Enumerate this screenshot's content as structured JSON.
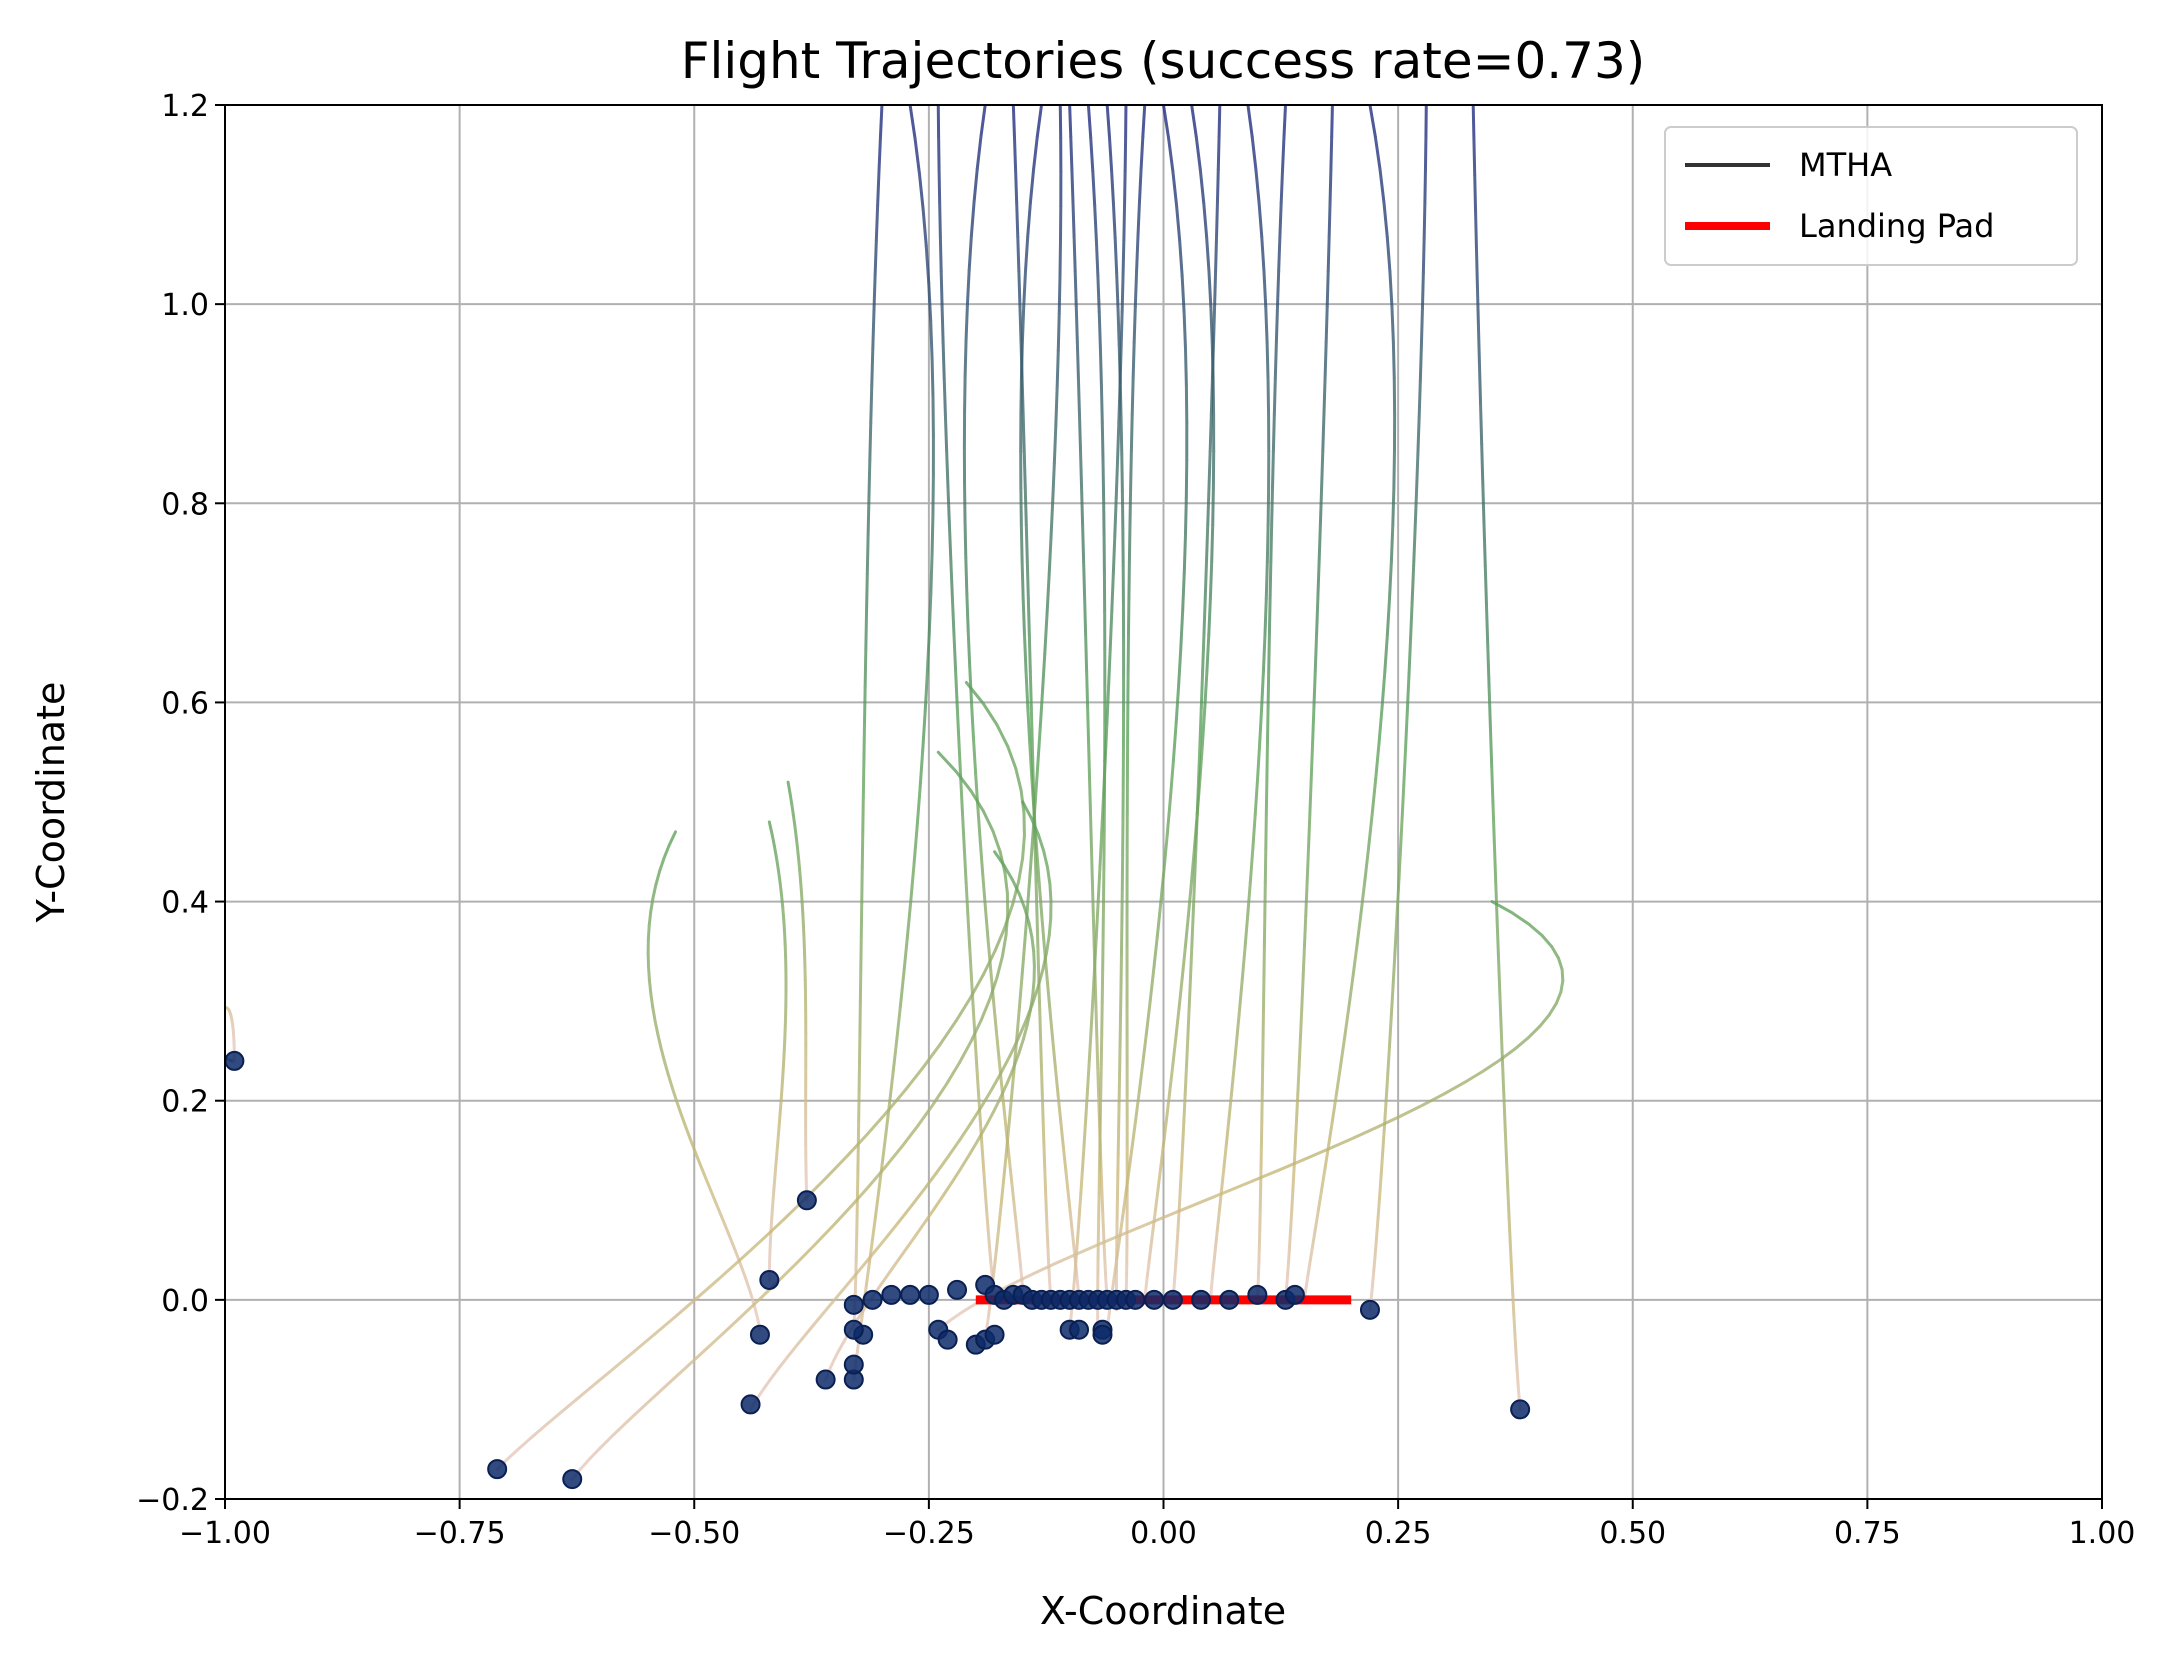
{
  "chart_data": {
    "type": "line",
    "title": "Flight Trajectories (success rate=0.73)",
    "xlabel": "X-Coordinate",
    "ylabel": "Y-Coordinate",
    "xlim": [
      -1.0,
      1.0
    ],
    "ylim": [
      -0.2,
      1.2
    ],
    "xticks": [
      -1.0,
      -0.75,
      -0.5,
      -0.25,
      0.0,
      0.25,
      0.5,
      0.75,
      1.0
    ],
    "xtick_labels": [
      "−1.00",
      "−0.75",
      "−0.50",
      "−0.25",
      "0.00",
      "0.25",
      "0.50",
      "0.75",
      "1.00"
    ],
    "yticks": [
      -0.2,
      0.0,
      0.2,
      0.4,
      0.6,
      0.8,
      1.0,
      1.2
    ],
    "ytick_labels": [
      "−0.2",
      "0.0",
      "0.2",
      "0.4",
      "0.6",
      "0.8",
      "1.0",
      "1.2"
    ],
    "grid": true,
    "legend": {
      "position": "top-right",
      "entries": [
        {
          "label": "MTHA",
          "color": "#333333"
        },
        {
          "label": "Landing Pad",
          "color": "#ff0000"
        }
      ]
    },
    "landing_pad": {
      "x": [
        -0.2,
        0.2
      ],
      "y": [
        0.0,
        0.0
      ],
      "color": "#ff0000"
    },
    "colors": {
      "start": "#1a237e",
      "mid": "#5aa05a",
      "late": "#c8b878",
      "end": "#e8c8c0",
      "endpoint": "#0d2a6a"
    },
    "trajectories": [
      {
        "x0": -0.1,
        "y0": 1.2,
        "xe": -0.06,
        "ye": 0.0
      },
      {
        "x0": -0.13,
        "y0": 1.2,
        "xe": -0.09,
        "ye": 0.0
      },
      {
        "x0": -0.06,
        "y0": 1.2,
        "xe": -0.05,
        "ye": -0.01
      },
      {
        "x0": -0.02,
        "y0": 1.2,
        "xe": -0.04,
        "ye": 0.0
      },
      {
        "x0": 0.03,
        "y0": 1.2,
        "xe": -0.02,
        "ye": 0.0
      },
      {
        "x0": 0.06,
        "y0": 1.2,
        "xe": 0.01,
        "ye": 0.0
      },
      {
        "x0": 0.09,
        "y0": 1.2,
        "xe": 0.05,
        "ye": 0.0
      },
      {
        "x0": 0.13,
        "y0": 1.2,
        "xe": 0.1,
        "ye": 0.0
      },
      {
        "x0": -0.16,
        "y0": 1.2,
        "xe": -0.12,
        "ye": 0.0
      },
      {
        "x0": -0.19,
        "y0": 1.2,
        "xe": -0.15,
        "ye": 0.01
      },
      {
        "x0": -0.24,
        "y0": 1.2,
        "xe": -0.18,
        "ye": 0.0
      },
      {
        "x0": 0.18,
        "y0": 1.2,
        "xe": 0.13,
        "ye": 0.0
      },
      {
        "x0": 0.22,
        "y0": 1.2,
        "xe": 0.15,
        "ye": 0.0
      },
      {
        "x0": 0.28,
        "y0": 1.2,
        "xe": 0.22,
        "ye": -0.01
      },
      {
        "x0": -0.08,
        "y0": 1.2,
        "xe": -0.07,
        "ye": -0.03
      },
      {
        "x0": -0.04,
        "y0": 1.2,
        "xe": -0.1,
        "ye": -0.03
      },
      {
        "x0": 0.0,
        "y0": 1.2,
        "xe": -0.06,
        "ye": -0.03
      },
      {
        "x0": -0.11,
        "y0": 1.2,
        "xe": -0.19,
        "ye": -0.04
      },
      {
        "x0": -0.27,
        "y0": 1.2,
        "xe": -0.33,
        "ye": -0.08
      },
      {
        "x0": -0.3,
        "y0": 1.2,
        "xe": -0.33,
        "ye": -0.03
      },
      {
        "x0": 0.33,
        "y0": 1.2,
        "xe": 0.38,
        "ye": -0.11
      },
      {
        "x0": -0.52,
        "y0": 0.47,
        "xe": -0.43,
        "ye": -0.03
      },
      {
        "x0": -0.42,
        "y0": 0.48,
        "xe": -0.42,
        "ye": 0.02
      },
      {
        "x0": -0.99,
        "y0": 0.24,
        "xe": -0.99,
        "ye": 0.24
      },
      {
        "x0": -0.4,
        "y0": 0.52,
        "xe": -0.38,
        "ye": 0.1
      },
      {
        "x0": -0.21,
        "y0": 0.62,
        "xe": -0.71,
        "ye": -0.17
      },
      {
        "x0": -0.24,
        "y0": 0.55,
        "xe": -0.63,
        "ye": -0.18
      },
      {
        "x0": -0.15,
        "y0": 0.5,
        "xe": -0.44,
        "ye": -0.11
      },
      {
        "x0": -0.18,
        "y0": 0.45,
        "xe": -0.36,
        "ye": -0.08
      },
      {
        "x0": 0.35,
        "y0": 0.4,
        "xe": -0.24,
        "ye": -0.03
      }
    ],
    "endpoints": [
      {
        "x": -0.99,
        "y": 0.24
      },
      {
        "x": -0.38,
        "y": 0.1
      },
      {
        "x": -0.42,
        "y": 0.02
      },
      {
        "x": -0.43,
        "y": -0.035
      },
      {
        "x": -0.44,
        "y": -0.105
      },
      {
        "x": -0.36,
        "y": -0.08
      },
      {
        "x": -0.33,
        "y": -0.08
      },
      {
        "x": -0.33,
        "y": -0.065
      },
      {
        "x": -0.32,
        "y": -0.035
      },
      {
        "x": -0.33,
        "y": -0.03
      },
      {
        "x": -0.33,
        "y": -0.005
      },
      {
        "x": -0.31,
        "y": 0.0
      },
      {
        "x": -0.29,
        "y": 0.005
      },
      {
        "x": -0.27,
        "y": 0.005
      },
      {
        "x": -0.25,
        "y": 0.005
      },
      {
        "x": -0.24,
        "y": -0.03
      },
      {
        "x": -0.23,
        "y": -0.04
      },
      {
        "x": -0.22,
        "y": 0.01
      },
      {
        "x": -0.2,
        "y": -0.045
      },
      {
        "x": -0.19,
        "y": -0.04
      },
      {
        "x": -0.18,
        "y": -0.035
      },
      {
        "x": -0.19,
        "y": 0.015
      },
      {
        "x": -0.18,
        "y": 0.005
      },
      {
        "x": -0.17,
        "y": 0.0
      },
      {
        "x": -0.16,
        "y": 0.005
      },
      {
        "x": -0.15,
        "y": 0.005
      },
      {
        "x": -0.14,
        "y": 0.0
      },
      {
        "x": -0.13,
        "y": 0.0
      },
      {
        "x": -0.12,
        "y": 0.0
      },
      {
        "x": -0.11,
        "y": 0.0
      },
      {
        "x": -0.1,
        "y": 0.0
      },
      {
        "x": -0.09,
        "y": 0.0
      },
      {
        "x": -0.08,
        "y": 0.0
      },
      {
        "x": -0.07,
        "y": 0.0
      },
      {
        "x": -0.06,
        "y": 0.0
      },
      {
        "x": -0.05,
        "y": 0.0
      },
      {
        "x": -0.04,
        "y": 0.0
      },
      {
        "x": -0.03,
        "y": 0.0
      },
      {
        "x": -0.01,
        "y": 0.0
      },
      {
        "x": 0.01,
        "y": 0.0
      },
      {
        "x": 0.04,
        "y": 0.0
      },
      {
        "x": 0.07,
        "y": 0.0
      },
      {
        "x": 0.1,
        "y": 0.005
      },
      {
        "x": 0.13,
        "y": 0.0
      },
      {
        "x": 0.14,
        "y": 0.005
      },
      {
        "x": -0.1,
        "y": -0.03
      },
      {
        "x": -0.09,
        "y": -0.03
      },
      {
        "x": -0.065,
        "y": -0.03
      },
      {
        "x": -0.065,
        "y": -0.035
      },
      {
        "x": -0.71,
        "y": -0.17
      },
      {
        "x": -0.63,
        "y": -0.18
      },
      {
        "x": 0.22,
        "y": -0.01
      },
      {
        "x": 0.38,
        "y": -0.11
      }
    ]
  }
}
